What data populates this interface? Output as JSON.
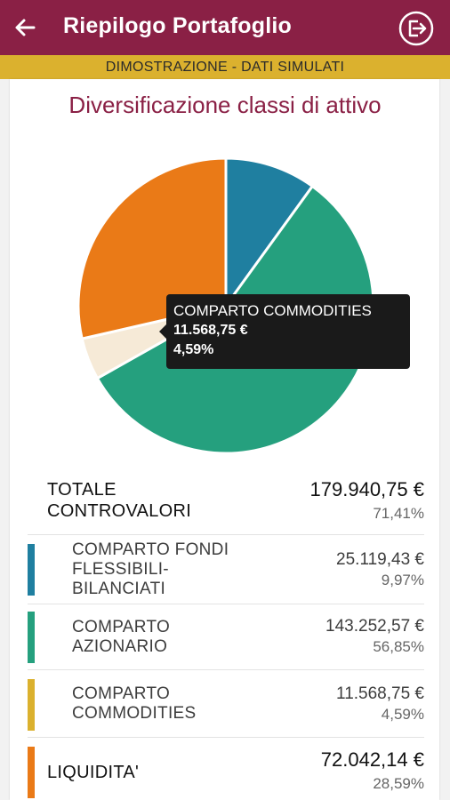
{
  "appbar": {
    "title": "Riepilogo Portafoglio",
    "back_icon": "arrow-left-icon",
    "exit_icon": "logout-icon"
  },
  "banner": {
    "text": "DIMOSTRAZIONE - DATI SIMULATI"
  },
  "section": {
    "title": "Diversificazione classi di attivo"
  },
  "colors": {
    "primary": "#8a2045",
    "banner": "#dbb12e",
    "fondi": "#1f7fa0",
    "azionario": "#25a07e",
    "commodities": "#f6ead7",
    "liquidita": "#ea7a17"
  },
  "chart_data": {
    "type": "pie",
    "categories": [
      "COMPARTO FONDI FLESSIBILI-BILANCIATI",
      "COMPARTO AZIONARIO",
      "COMPARTO COMMODITIES",
      "LIQUIDITA'"
    ],
    "values": [
      9.97,
      56.85,
      4.59,
      28.59
    ],
    "colors": [
      "#1f7fa0",
      "#25a07e",
      "#f6ead7",
      "#ea7a17"
    ],
    "start_angle_deg": 0,
    "direction": "clockwise"
  },
  "tooltip": {
    "title": "COMPARTO COMMODITIES",
    "amount": "11.568,75 €",
    "percent": "4,59%"
  },
  "summary": {
    "total": {
      "label_l1": "TOTALE",
      "label_l2": "CONTROVALORI",
      "value": "179.940,75 €",
      "pct": "71,41%"
    },
    "fondi": {
      "label_l1": "COMPARTO FONDI",
      "label_l2": "FLESSIBILI-",
      "label_l3": "BILANCIATI",
      "value": "25.119,43 €",
      "pct": "9,97%"
    },
    "azionario": {
      "label_l1": "COMPARTO",
      "label_l2": "AZIONARIO",
      "value": "143.252,57 €",
      "pct": "56,85%"
    },
    "commodities": {
      "label_l1": "COMPARTO",
      "label_l2": "COMMODITIES",
      "value": "11.568,75 €",
      "pct": "4,59%"
    },
    "liquidita": {
      "label": "LIQUIDITA'",
      "value": "72.042,14 €",
      "pct": "28,59%"
    }
  }
}
